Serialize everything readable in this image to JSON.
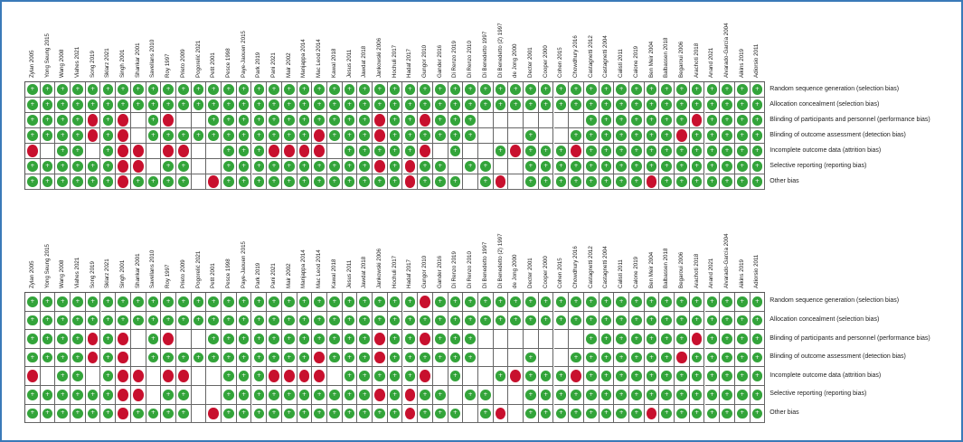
{
  "colors": {
    "low": "#33a43a",
    "high": "#c8102e",
    "frame": "#3a7ab8"
  },
  "panels": [
    {
      "studies": [
        "Zylan 2005",
        "Yong Seung 2015",
        "Wang 2008",
        "Viahes 2021",
        "Song 2019",
        "Sklarz 2021",
        "Singh 2001",
        "Shankar 2001",
        "Savellans 2010",
        "Roy 1997",
        "Prieto 2009",
        "Pogorelić 2021",
        "Petit 2001",
        "Pesce 1998",
        "Paye-Jaouen 2015",
        "Park 2019",
        "Pani 2021",
        "Mair 2002",
        "Manjappa 2014",
        "Mac Leod 2014",
        "Kawal 2018",
        "Jesus 2011",
        "Jawdat 2018",
        "Jankowski 2006",
        "Hochuli 2017",
        "Hadaf 2017",
        "Gungor 2010",
        "Gander 2016",
        "Di Renzo 2019",
        "Di Renzo 2010",
        "Di Benedetto 1997",
        "Di Benedetto (2) 1997",
        "de Jong 2000",
        "Decter 2001",
        "Cooper 2000",
        "Cohen 2015",
        "Chowdhury 2016",
        "Castagnetti 2012",
        "Castagnetti 2004",
        "Calisti 2011",
        "Calone 2019",
        "Ben Meir 2004",
        "Balbassen 2018",
        "Begaroui 2006",
        "Arachoti 2018",
        "Anand 2021",
        "Alvarado-García 2004",
        "Aikins 2019",
        "Adiorsio 2011"
      ],
      "domains": [
        "Random sequence generation (selection bias)",
        "Allocation concealment (selection bias)",
        "Blinding of participants and personnel (performance bias)",
        "Blinding of outcome assessment (detection bias)",
        "Incomplete outcome data (attrition bias)",
        "Selective reporting (reporting bias)",
        "Other bias"
      ],
      "ratings": [
        "LLLLLLLLLLLLLLLLLLLLLLLLLLLLLLLLLLLLLLLLLLLLLLLLL",
        "LLLLLLLLLLLLLLLLLLLLLLLLLLLLLLLLLLLLLLLLLLLLLLLLL",
        "LLLLHLH.LH..LLLLLLLLLLLHLLHLLL.......LLLLLLLHLLLL",
        "LLLLHLH.LLLLLLLLLLLHLLLHLLLLLL...L..LLLLLLLHLLLLL",
        "H.LL.LHH.HH..LLLHHHH.LLLLLH.L..LHLLLHLLLLLLLLLLLL",
        "LLLLLLHH.LL..LLLLLLLLLLHLHLL.LL..LLLLLLLLLLLLLLLL",
        "LLLLLLHLLLL.HLLLLLLLLLLLLHLLL.LH.LLLLLLLLHLLLLLLL"
      ]
    },
    {
      "studies": [
        "Zylan 2005",
        "Yong Seung 2015",
        "Wang 2008",
        "Viahes 2021",
        "Song 2019",
        "Sklarz 2021",
        "Singh 2001",
        "Shankar 2001",
        "Savellans 2010",
        "Roy 1997",
        "Prieto 2009",
        "Pogorelić 2021",
        "Petit 2001",
        "Pesce 1998",
        "Paye-Jaouen 2015",
        "Park 2019",
        "Pani 2021",
        "Mair 2002",
        "Manjappa 2014",
        "Mac Leod 2014",
        "Kawal 2018",
        "Jesus 2011",
        "Jawdat 2018",
        "Jankowski 2006",
        "Hochuli 2017",
        "Hadaf 2017",
        "Gungor 2010",
        "Gander 2016",
        "Di Renzo 2019",
        "Di Renzo 2010",
        "Di Benedetto 1997",
        "Di Benedetto (2) 1997",
        "de Jong 2000",
        "Decter 2001",
        "Cooper 2000",
        "Cohen 2015",
        "Chowdhury 2016",
        "Castagnetti 2012",
        "Castagnetti 2004",
        "Calisti 2011",
        "Calone 2019",
        "Ben Meir 2004",
        "Balbassen 2018",
        "Begaroui 2006",
        "Arachoti 2018",
        "Anand 2021",
        "Alvarado-García 2004",
        "Aikins 2019",
        "Adiorsio 2011"
      ],
      "domains": [
        "Random sequence generation (selection bias)",
        "Allocation concealment (selection bias)",
        "Blinding of participants and personnel (performance bias)",
        "Blinding of outcome assessment (detection bias)",
        "Incomplete outcome data (attrition bias)",
        "Selective reporting (reporting bias)",
        "Other bias"
      ],
      "ratings": [
        "LLLLLLLLLLLLLLLLLLLLLLLLLLHLLLLLLLLLLLLLLLLLLLLLL",
        "LLLLLLLLLLLLLLLLLLLLLLLLLLLLLLLLLLLLLLLLLLLLLLLLL",
        "LLLLHLH.LH..LLLLLLLLLLLHLLHLLL.......LLLLLLLHLLLL",
        "LLLLHLH.LLLLLLLLLLLHLLLHLLLLLL...L..LLLLLLLHLLLLL",
        "H.LL.LHH.HH..LLLHHHH.LLLLLH.L..LHLLLHLLLLLLLLLLLL",
        "LLLLLLHH.LL..LLLLLLLLLLHLHLL.LL..LLLLLLLLLLLLLLLL",
        "LLLLLLHLLLL.HLLLLLLLLLLLLHLLL.LH.LLLLLLLLHLLLLLLL"
      ]
    }
  ]
}
